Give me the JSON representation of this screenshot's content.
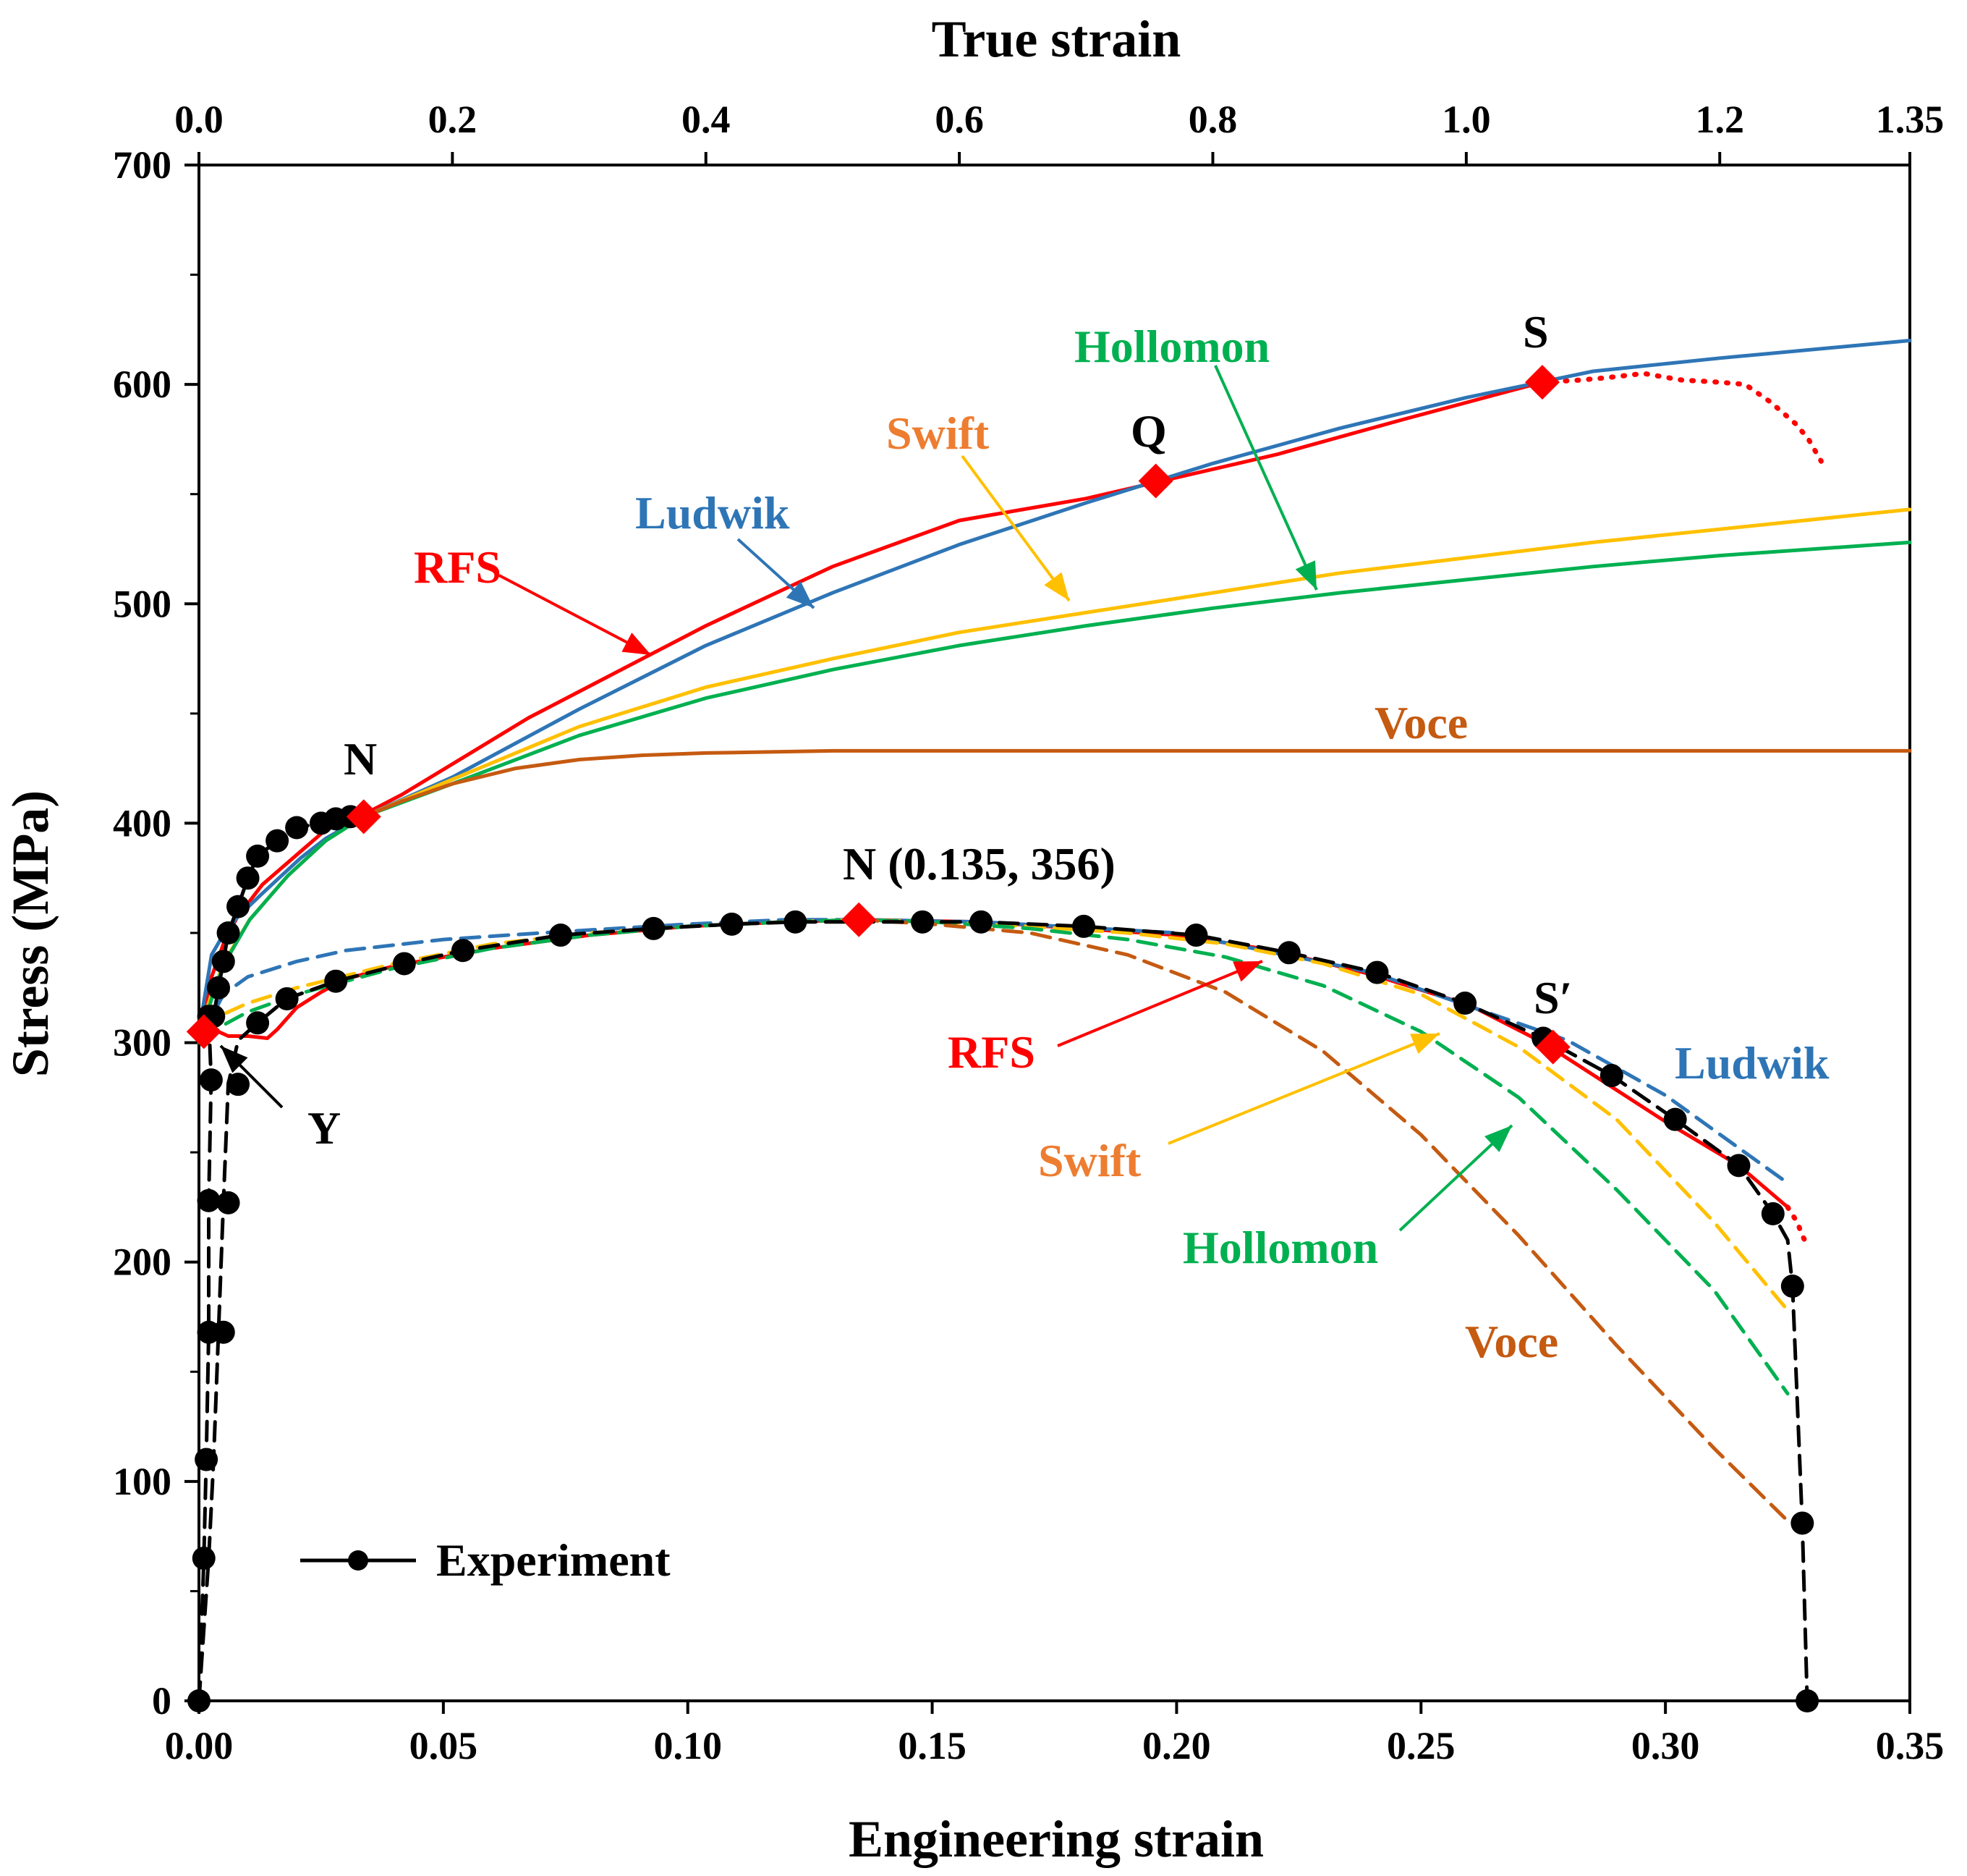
{
  "chart_data": {
    "type": "line",
    "x_title": "Engineering strain",
    "x2_title": "True strain",
    "y_title": "Stress (MPa)",
    "x_ticks": [
      {
        "v": 0,
        "label": "0.00"
      },
      {
        "v": 0.05,
        "label": "0.05"
      },
      {
        "v": 0.1,
        "label": "0.10"
      },
      {
        "v": 0.15,
        "label": "0.15"
      },
      {
        "v": 0.2,
        "label": "0.20"
      },
      {
        "v": 0.25,
        "label": "0.25"
      },
      {
        "v": 0.3,
        "label": "0.30"
      },
      {
        "v": 0.35,
        "label": "0.35"
      }
    ],
    "x2_ticks": [
      {
        "v": 0,
        "label": "0.0"
      },
      {
        "v": 0.2,
        "label": "0.2"
      },
      {
        "v": 0.4,
        "label": "0.4"
      },
      {
        "v": 0.6,
        "label": "0.6"
      },
      {
        "v": 0.8,
        "label": "0.8"
      },
      {
        "v": 1.0,
        "label": "1.0"
      },
      {
        "v": 1.2,
        "label": "1.2"
      },
      {
        "v": 1.35,
        "label": "1.35"
      }
    ],
    "y_ticks": [
      {
        "v": 0,
        "label": "0"
      },
      {
        "v": 100,
        "label": "100"
      },
      {
        "v": 200,
        "label": "200"
      },
      {
        "v": 300,
        "label": "300"
      },
      {
        "v": 400,
        "label": "400"
      },
      {
        "v": 500,
        "label": "500"
      },
      {
        "v": 600,
        "label": "600"
      },
      {
        "v": 700,
        "label": "700"
      }
    ],
    "xlim": [
      0,
      0.35
    ],
    "x2lim": [
      0,
      1.35
    ],
    "ylim": [
      0,
      700
    ],
    "colors": {
      "RFS": "#ff0000",
      "Ludwik": "#2e75b6",
      "Swift": "#ffc000",
      "Hollomon": "#00b050",
      "Voce": "#c55a11",
      "Experiment": "#000000"
    },
    "true_curves": [
      {
        "name": "RFS",
        "axis": "top",
        "dash": false,
        "x": [
          0,
          0.01,
          0.02,
          0.03,
          0.05,
          0.08,
          0.1,
          0.13,
          0.16,
          0.2,
          0.26,
          0.3,
          0.4,
          0.5,
          0.6,
          0.7,
          0.76,
          0.85,
          0.95,
          1.06
        ],
        "y": [
          305,
          330,
          346,
          357,
          372,
          387,
          397,
          404,
          413,
          427,
          448,
          460,
          490,
          517,
          538,
          548,
          556,
          568,
          584,
          601
        ]
      },
      {
        "name": "RFS",
        "axis": "top",
        "dash": true,
        "dotted": true,
        "x": [
          1.06,
          1.09,
          1.11,
          1.14,
          1.17,
          1.2,
          1.22,
          1.24,
          1.26,
          1.27,
          1.28
        ],
        "y": [
          601,
          602,
          603,
          605,
          602,
          601,
          600,
          592,
          582,
          575,
          565
        ]
      },
      {
        "name": "Ludwik",
        "axis": "top",
        "dash": false,
        "x": [
          0,
          0.01,
          0.02,
          0.03,
          0.05,
          0.08,
          0.1,
          0.13,
          0.2,
          0.3,
          0.4,
          0.5,
          0.6,
          0.7,
          0.8,
          0.9,
          1.0,
          1.1,
          1.2,
          1.35
        ],
        "y": [
          305,
          340,
          350,
          357,
          368,
          384,
          393,
          403,
          421,
          452,
          481,
          505,
          527,
          546,
          564,
          580,
          594,
          606,
          612,
          620
        ]
      },
      {
        "name": "Swift",
        "axis": "top",
        "dash": false,
        "x": [
          0,
          0.01,
          0.02,
          0.04,
          0.07,
          0.1,
          0.13,
          0.2,
          0.3,
          0.4,
          0.5,
          0.6,
          0.7,
          0.8,
          0.9,
          1.0,
          1.1,
          1.2,
          1.35
        ],
        "y": [
          305,
          322,
          337,
          356,
          376,
          392,
          403,
          420,
          444,
          462,
          475,
          487,
          496,
          505,
          514,
          521,
          528,
          534,
          543
        ]
      },
      {
        "name": "Hollomon",
        "axis": "top",
        "dash": false,
        "x": [
          0,
          0.01,
          0.02,
          0.04,
          0.07,
          0.1,
          0.13,
          0.2,
          0.3,
          0.4,
          0.5,
          0.6,
          0.7,
          0.8,
          0.9,
          1.0,
          1.1,
          1.2,
          1.35
        ],
        "y": [
          300,
          320,
          336,
          356,
          376,
          392,
          403,
          418,
          440,
          457,
          470,
          481,
          490,
          498,
          505,
          511,
          517,
          522,
          528
        ]
      },
      {
        "name": "Voce",
        "axis": "top",
        "dash": false,
        "x": [
          0.13,
          0.16,
          0.2,
          0.25,
          0.3,
          0.35,
          0.4,
          0.5,
          0.6,
          0.8,
          1.0,
          1.2,
          1.35
        ],
        "y": [
          403,
          410,
          418,
          425,
          429,
          431,
          432,
          433,
          433,
          433,
          433,
          433,
          433
        ]
      }
    ],
    "eng_curves": [
      {
        "name": "RFS",
        "dash": false,
        "x": [
          0.001,
          0.002,
          0.004,
          0.006,
          0.01,
          0.014,
          0.016,
          0.02,
          0.025,
          0.03,
          0.04,
          0.06,
          0.08,
          0.1,
          0.12,
          0.135,
          0.16,
          0.18,
          0.2,
          0.22,
          0.24,
          0.26,
          0.275,
          0.3,
          0.315,
          0.325
        ],
        "y": [
          305,
          310,
          305,
          303,
          303,
          302,
          306,
          316,
          323,
          329,
          335,
          343,
          349,
          353,
          355,
          356,
          355,
          352,
          349,
          342,
          331,
          317,
          300,
          264,
          244,
          225
        ]
      },
      {
        "name": "RFS",
        "dash": true,
        "dotted": true,
        "x": [
          0.325,
          0.327,
          0.328,
          0.329
        ],
        "y": [
          225,
          218,
          212,
          208
        ]
      },
      {
        "name": "Ludwik",
        "dash": true,
        "x": [
          0.001,
          0.005,
          0.01,
          0.02,
          0.03,
          0.05,
          0.07,
          0.1,
          0.12,
          0.135,
          0.16,
          0.2,
          0.24,
          0.28,
          0.3,
          0.315,
          0.325
        ],
        "y": [
          305,
          322,
          330,
          337,
          342,
          347,
          350,
          354,
          356,
          356,
          355,
          350,
          332,
          301,
          276,
          252,
          236
        ]
      },
      {
        "name": "Swift",
        "dash": true,
        "x": [
          0.001,
          0.005,
          0.01,
          0.02,
          0.04,
          0.06,
          0.08,
          0.1,
          0.12,
          0.135,
          0.15,
          0.17,
          0.19,
          0.21,
          0.23,
          0.25,
          0.27,
          0.29,
          0.31,
          0.325
        ],
        "y": [
          305,
          313,
          318,
          325,
          336,
          345,
          350,
          353,
          355,
          356,
          355,
          353,
          350,
          345,
          336,
          322,
          298,
          265,
          218,
          178
        ]
      },
      {
        "name": "Hollomon",
        "dash": true,
        "x": [
          0.001,
          0.005,
          0.01,
          0.02,
          0.04,
          0.06,
          0.08,
          0.1,
          0.12,
          0.135,
          0.15,
          0.17,
          0.19,
          0.21,
          0.23,
          0.25,
          0.27,
          0.29,
          0.31,
          0.325
        ],
        "y": [
          300,
          308,
          314,
          322,
          334,
          343,
          349,
          353,
          355,
          356,
          355,
          352,
          347,
          339,
          326,
          305,
          275,
          233,
          187,
          140
        ]
      },
      {
        "name": "Voce",
        "dash": true,
        "x": [
          0.135,
          0.15,
          0.17,
          0.19,
          0.21,
          0.23,
          0.25,
          0.27,
          0.29,
          0.31,
          0.325
        ],
        "y": [
          356,
          354,
          350,
          340,
          323,
          296,
          258,
          212,
          162,
          115,
          82
        ]
      }
    ],
    "experiment": {
      "name": "Experiment",
      "x": [
        0,
        0.001,
        0.0015,
        0.002,
        0.002,
        0.0025,
        0.002,
        0.003,
        0.004,
        0.005,
        0.006,
        0.008,
        0.01,
        0.012,
        0.016,
        0.02,
        0.025,
        0.028,
        0.031,
        0.005,
        0.006,
        0.008,
        0.012,
        0.018,
        0.028,
        0.042,
        0.054,
        0.074,
        0.093,
        0.109,
        0.122,
        0.148,
        0.16,
        0.181,
        0.204,
        0.223,
        0.241,
        0.259,
        0.275,
        0.289,
        0.302,
        0.315,
        0.322,
        0.326,
        0.328,
        0.329
      ],
      "y": [
        0,
        65,
        110,
        168,
        228,
        283,
        312,
        312,
        325,
        337,
        350,
        362,
        375,
        385,
        392,
        398,
        400,
        402,
        403,
        168,
        227,
        281,
        309,
        320,
        328,
        336,
        342,
        349,
        352,
        354,
        355,
        355,
        355,
        353,
        349,
        341,
        332,
        318,
        302,
        285,
        265,
        244,
        222,
        189,
        81,
        0
      ],
      "line": [
        {
          "x": [
            0,
            0.001,
            0.0015,
            0.002,
            0.002,
            0.0025,
            0.002,
            0.003,
            0.004,
            0.005,
            0.006,
            0.008,
            0.01,
            0.012,
            0.016,
            0.02,
            0.025,
            0.028,
            0.031,
            0.033
          ]
        },
        {
          "x": [
            0,
            0.002,
            0.003,
            0.004,
            0.005,
            0.006,
            0.008,
            0.012,
            0.018,
            0.028,
            0.042,
            0.054,
            0.074,
            0.093,
            0.109,
            0.122,
            0.148,
            0.16,
            0.181,
            0.204,
            0.223,
            0.241,
            0.259,
            0.275,
            0.289,
            0.302,
            0.315,
            0.322,
            0.325,
            0.326,
            0.328,
            0.329
          ]
        }
      ],
      "line_y": [
        [
          0,
          65,
          110,
          168,
          228,
          283,
          312,
          312,
          325,
          337,
          350,
          362,
          375,
          385,
          392,
          398,
          400,
          402,
          403,
          404
        ],
        [
          0,
          65,
          110,
          168,
          227,
          281,
          301,
          309,
          320,
          328,
          336,
          342,
          349,
          352,
          354,
          355,
          355,
          355,
          353,
          349,
          341,
          332,
          318,
          302,
          285,
          265,
          244,
          222,
          210,
          189,
          81,
          0
        ]
      ]
    },
    "markers": [
      {
        "label": "Y",
        "axis": "bottom",
        "x": 0.001,
        "y": 305
      },
      {
        "label": "N",
        "axis": "top",
        "x": 0.13,
        "y": 403
      },
      {
        "label": "Q",
        "axis": "top",
        "x": 0.755,
        "y": 556
      },
      {
        "label": "S",
        "axis": "top",
        "x": 1.06,
        "y": 601
      },
      {
        "label": "N (0.135, 356)",
        "axis": "bottom",
        "x": 0.135,
        "y": 356
      },
      {
        "label": "S′",
        "axis": "bottom",
        "x": 0.277,
        "y": 298
      }
    ],
    "annotations": {
      "rfs_top": "RFS",
      "ludwik_top": "Ludwik",
      "swift_top": "Swift",
      "hollomon_top": "Hollomon",
      "voce_top": "Voce",
      "rfs_bottom": "RFS",
      "ludwik_bottom": "Ludwik",
      "swift_bottom": "Swift",
      "hollomon_bottom": "Hollomon",
      "voce_bottom": "Voce",
      "y_label": "Y",
      "n_top": "N",
      "q_label": "Q",
      "s_label": "S",
      "n_bottom": "N (0.135, 356)",
      "s_prime": "S′"
    },
    "legend": {
      "label": "Experiment",
      "position": "bottom-left"
    }
  }
}
